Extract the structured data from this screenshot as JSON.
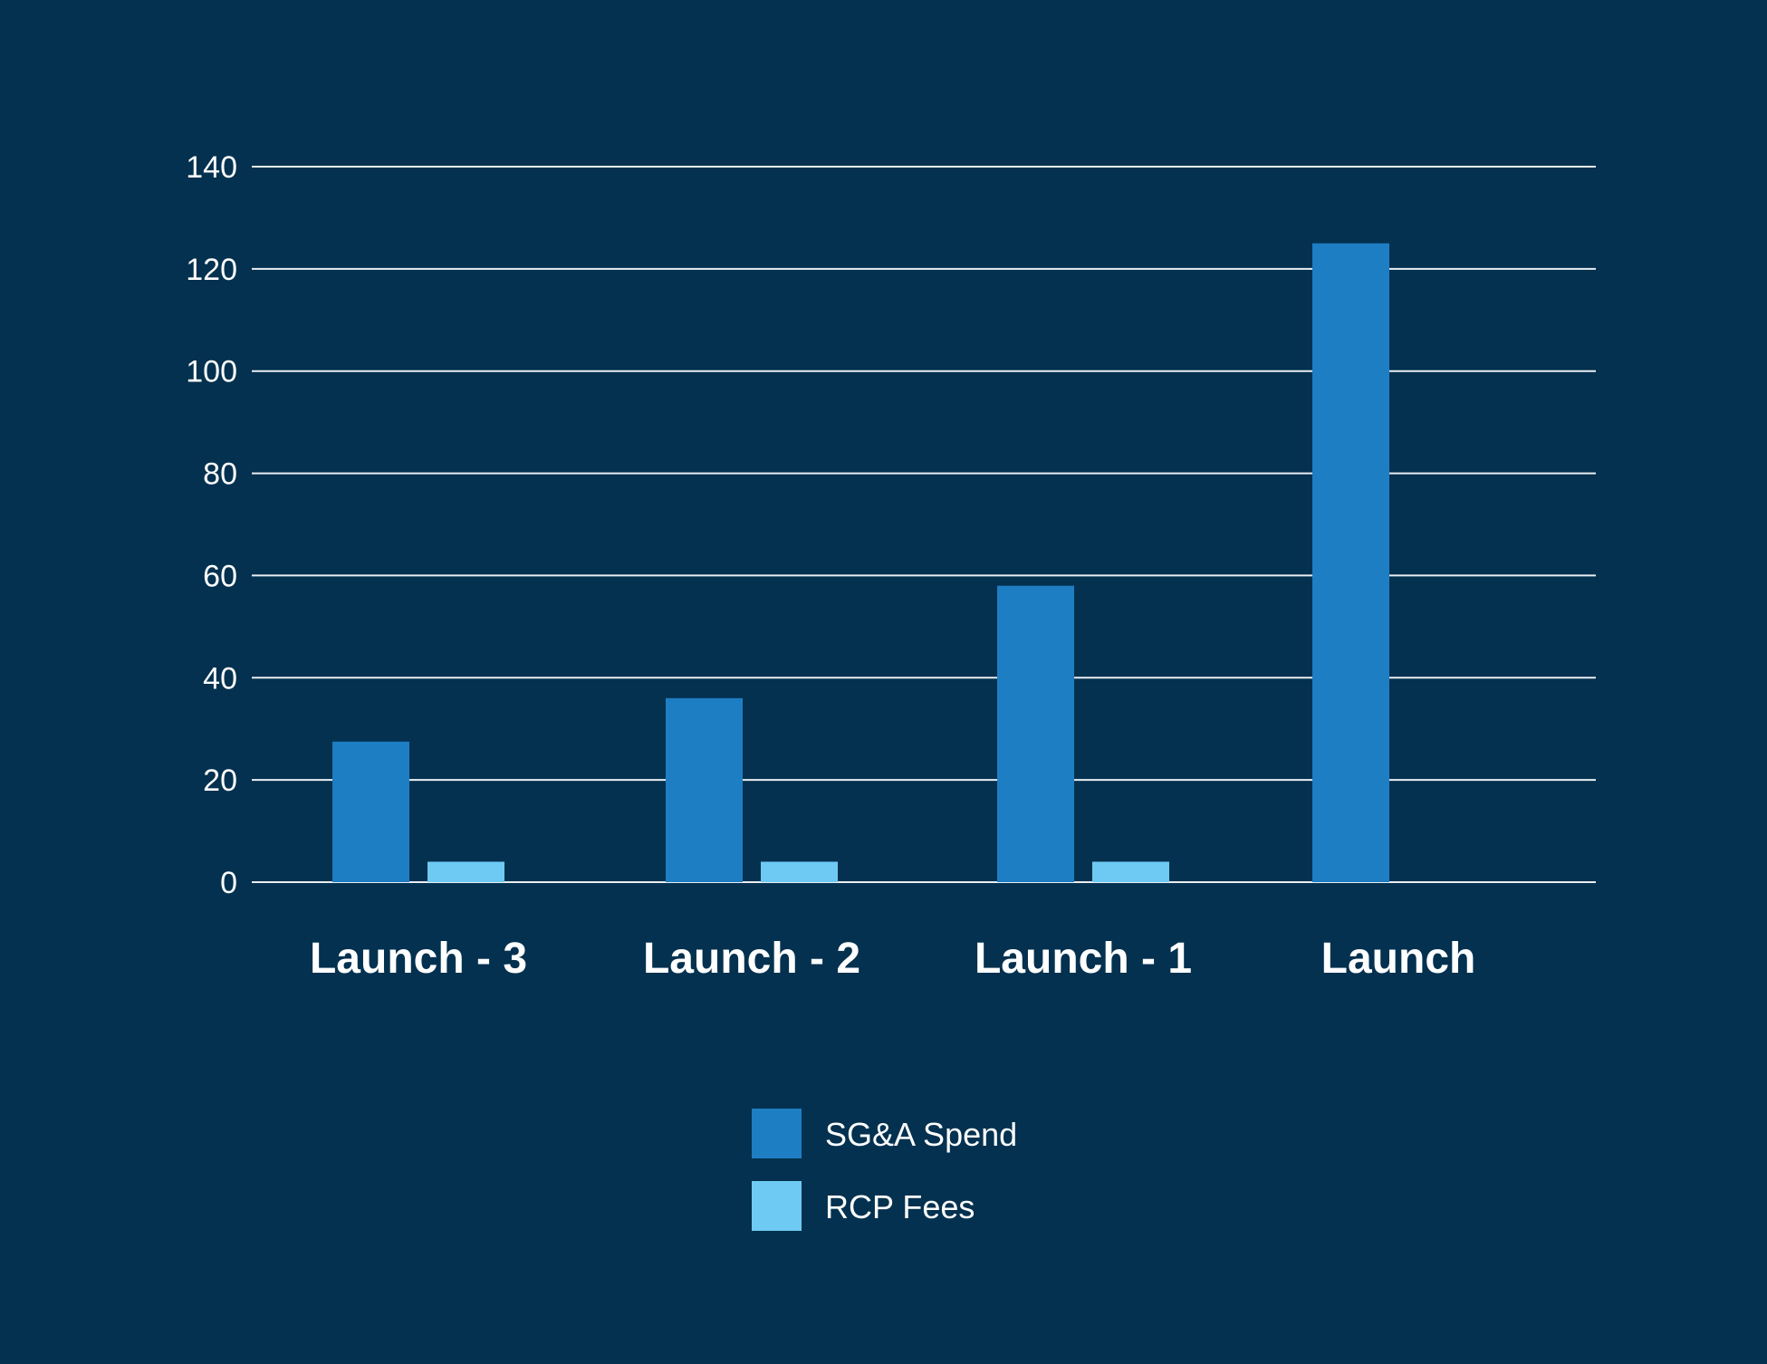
{
  "background_color": "#03314f",
  "chart_data": {
    "type": "bar",
    "categories": [
      "Launch - 3",
      "Launch - 2",
      "Launch - 1",
      "Launch"
    ],
    "series": [
      {
        "name": "SG&A Spend",
        "color": "#1e7ec3",
        "values": [
          27.5,
          36,
          58,
          125
        ]
      },
      {
        "name": "RCP Fees",
        "color": "#6ecaf3",
        "values": [
          4,
          4,
          4,
          0
        ]
      }
    ],
    "ylim": [
      0,
      140
    ],
    "yticks": [
      0,
      20,
      40,
      60,
      80,
      100,
      120,
      140
    ],
    "title": "",
    "xlabel": "",
    "ylabel": "",
    "grid": true,
    "legend": "bottom-center"
  }
}
